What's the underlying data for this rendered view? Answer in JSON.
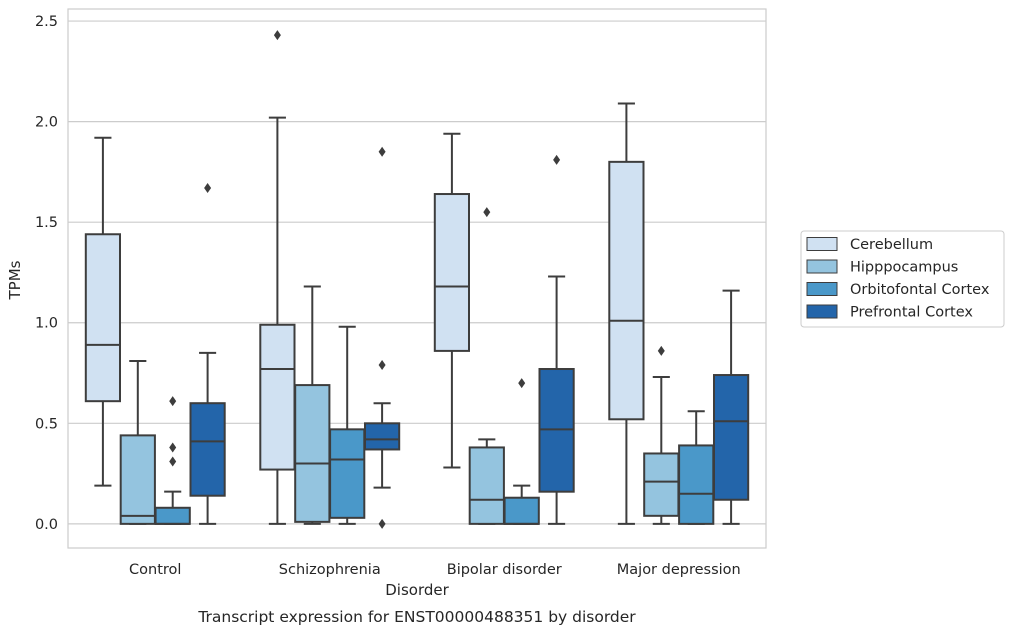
{
  "chart_data": {
    "type": "box",
    "title": "",
    "caption": "Transcript expression for ENST00000488351 by disorder",
    "xlabel": "Disorder",
    "ylabel": "TPMs",
    "ylim": [
      -0.12,
      2.56
    ],
    "yticks": [
      0.0,
      0.5,
      1.0,
      1.5,
      2.0,
      2.5
    ],
    "ytick_labels": [
      "0.0",
      "0.5",
      "1.0",
      "1.5",
      "2.0",
      "2.5"
    ],
    "categories": [
      "Control",
      "Schizophrenia",
      "Bipolar disorder",
      "Major depression"
    ],
    "grid": "horizontal",
    "legend_position": "right",
    "series": [
      {
        "name": "Cerebellum",
        "color": "#d0e1f2",
        "boxes": [
          {
            "whislo": 0.19,
            "q1": 0.61,
            "med": 0.89,
            "q3": 1.44,
            "whishi": 1.92,
            "fliers": []
          },
          {
            "whislo": 0.0,
            "q1": 0.27,
            "med": 0.77,
            "q3": 0.99,
            "whishi": 2.02,
            "fliers": [
              2.43
            ]
          },
          {
            "whislo": 0.28,
            "q1": 0.86,
            "med": 1.18,
            "q3": 1.64,
            "whishi": 1.94,
            "fliers": []
          },
          {
            "whislo": 0.0,
            "q1": 0.52,
            "med": 1.01,
            "q3": 1.8,
            "whishi": 2.09,
            "fliers": []
          }
        ]
      },
      {
        "name": "Hipppocampus",
        "color": "#94c4df",
        "boxes": [
          {
            "whislo": 0.0,
            "q1": 0.0,
            "med": 0.04,
            "q3": 0.44,
            "whishi": 0.81,
            "fliers": []
          },
          {
            "whislo": 0.0,
            "q1": 0.01,
            "med": 0.3,
            "q3": 0.69,
            "whishi": 1.18,
            "fliers": []
          },
          {
            "whislo": 0.0,
            "q1": 0.0,
            "med": 0.12,
            "q3": 0.38,
            "whishi": 0.42,
            "fliers": [
              1.55
            ]
          },
          {
            "whislo": 0.0,
            "q1": 0.04,
            "med": 0.21,
            "q3": 0.35,
            "whishi": 0.73,
            "fliers": [
              0.86
            ]
          }
        ]
      },
      {
        "name": "Orbitofontal Cortex",
        "color": "#4a98c9",
        "boxes": [
          {
            "whislo": 0.0,
            "q1": 0.0,
            "med": 0.0,
            "q3": 0.08,
            "whishi": 0.16,
            "fliers": [
              0.61,
              0.38,
              0.31
            ]
          },
          {
            "whislo": 0.0,
            "q1": 0.03,
            "med": 0.32,
            "q3": 0.47,
            "whishi": 0.98,
            "fliers": []
          },
          {
            "whislo": 0.0,
            "q1": 0.0,
            "med": 0.0,
            "q3": 0.13,
            "whishi": 0.19,
            "fliers": [
              0.7
            ]
          },
          {
            "whislo": 0.0,
            "q1": 0.0,
            "med": 0.15,
            "q3": 0.39,
            "whishi": 0.56,
            "fliers": []
          }
        ]
      },
      {
        "name": "Prefrontal Cortex",
        "color": "#2365aa",
        "boxes": [
          {
            "whislo": 0.0,
            "q1": 0.14,
            "med": 0.41,
            "q3": 0.6,
            "whishi": 0.85,
            "fliers": [
              1.67
            ]
          },
          {
            "whislo": 0.18,
            "q1": 0.37,
            "med": 0.42,
            "q3": 0.5,
            "whishi": 0.6,
            "fliers": [
              1.85,
              0.79,
              0.0
            ]
          },
          {
            "whislo": 0.0,
            "q1": 0.16,
            "med": 0.47,
            "q3": 0.77,
            "whishi": 1.23,
            "fliers": [
              1.81
            ]
          },
          {
            "whislo": 0.0,
            "q1": 0.12,
            "med": 0.51,
            "q3": 0.74,
            "whishi": 1.16,
            "fliers": []
          }
        ]
      }
    ]
  }
}
